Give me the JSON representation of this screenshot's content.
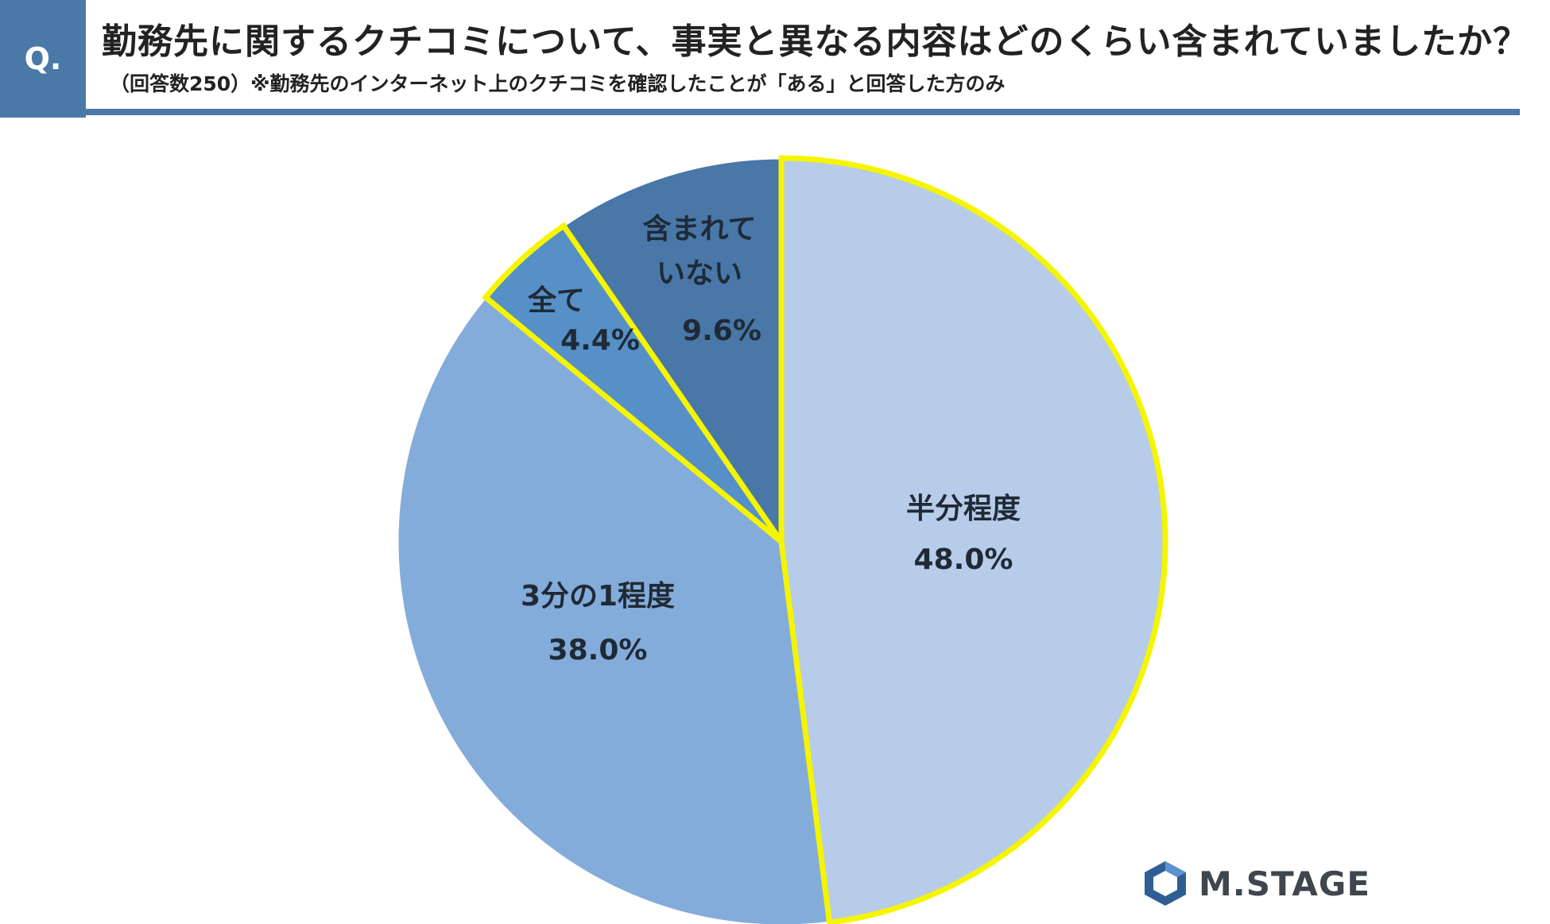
{
  "header": {
    "badge": "Q.",
    "title": "勤務先に関するクチコミについて、事実と異なる内容はどのくらい含まれていましたか？",
    "subtitle": "（回答数250）※勤務先のインターネット上のクチコミを確認したことが「ある」と回答した方のみ"
  },
  "chart_data": {
    "type": "pie",
    "start_angle_deg": 0,
    "direction": "clockwise",
    "slices": [
      {
        "name": "半分程度",
        "value": 48.0,
        "label": "48.0%",
        "color": "#b7cce8"
      },
      {
        "name": "3分の1程度",
        "value": 38.0,
        "label": "38.0%",
        "color": "#84acda"
      },
      {
        "name": "全て",
        "value": 4.4,
        "label": "4.4%",
        "color": "#5690c7"
      },
      {
        "name": "含まれていない",
        "value": 9.6,
        "label": "9.6%",
        "color": "#4877a8"
      }
    ],
    "highlight_color": "#f5f500",
    "highlighted": [
      "半分程度",
      "全て"
    ]
  },
  "logo": {
    "text": "M.STAGE",
    "icon": "hexagon-logo-icon"
  }
}
